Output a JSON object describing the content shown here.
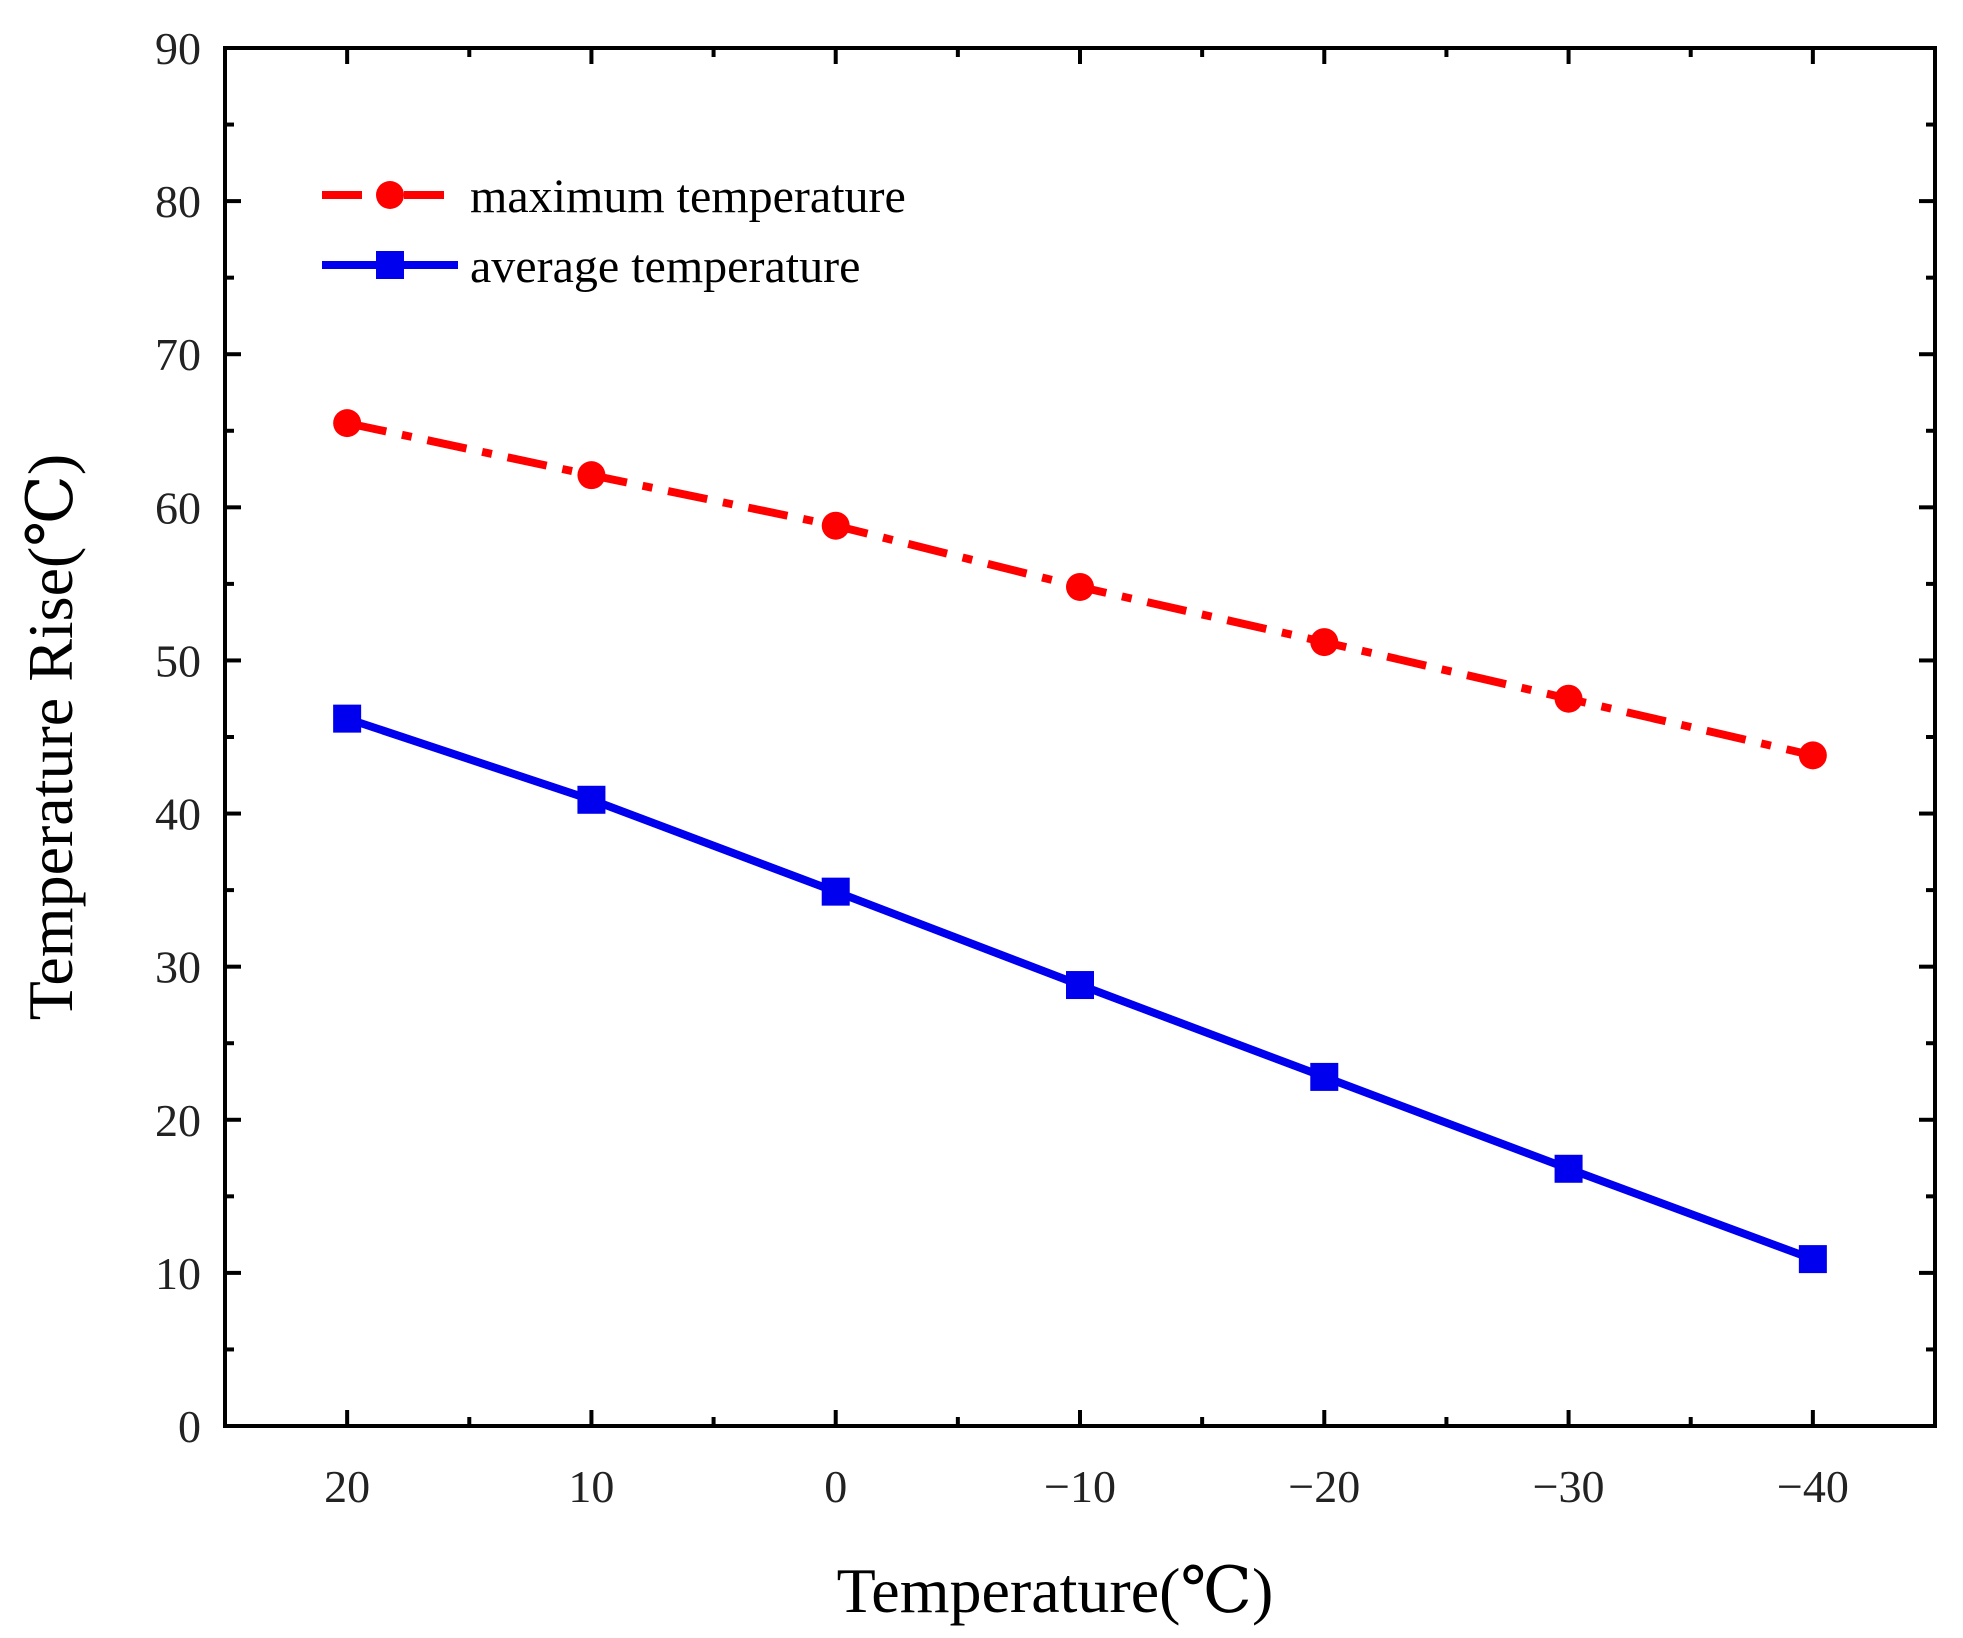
{
  "chart_data": {
    "type": "line",
    "title": "",
    "xlabel": "Temperature(℃)",
    "ylabel": "Temperature Rise(℃)",
    "x": [
      20,
      10,
      0,
      -10,
      -20,
      -30,
      -40
    ],
    "x_tick_labels": [
      "20",
      "10",
      "0",
      "−10",
      "−20",
      "−30",
      "−40"
    ],
    "xlim": [
      25,
      -45
    ],
    "x_reversed": true,
    "ylim": [
      0,
      90
    ],
    "y_ticks": [
      0,
      10,
      20,
      30,
      40,
      50,
      60,
      70,
      80,
      90
    ],
    "grid": false,
    "legend_position": "top-left",
    "series": [
      {
        "name": "maximum temperature",
        "values": [
          65.5,
          62.1,
          58.8,
          54.8,
          51.2,
          47.5,
          43.8
        ],
        "color": "#ff0000",
        "marker": "circle",
        "line_style": "dash-dot"
      },
      {
        "name": "average temperature",
        "values": [
          46.2,
          40.9,
          34.9,
          28.8,
          22.8,
          16.8,
          10.9
        ],
        "color": "#0000ee",
        "marker": "square",
        "line_style": "solid"
      }
    ]
  }
}
